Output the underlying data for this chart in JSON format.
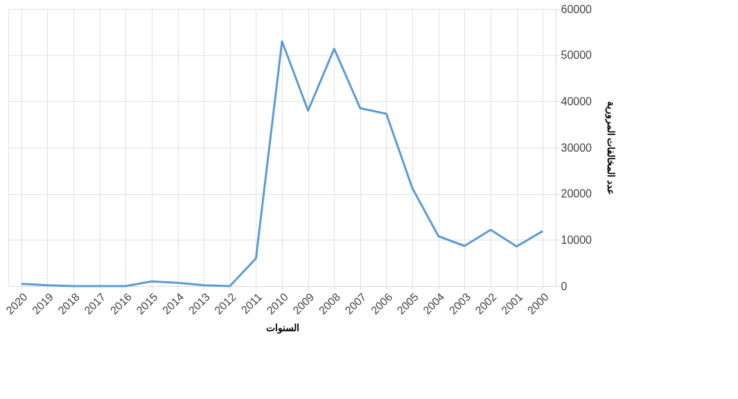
{
  "chart_data": {
    "type": "line",
    "xlabel": "السنوات",
    "ylabel": "عدد المخالفات المرورية",
    "categories": [
      "2020",
      "2019",
      "2018",
      "2017",
      "2016",
      "2015",
      "2014",
      "2013",
      "2012",
      "2011",
      "2010",
      "2009",
      "2008",
      "2007",
      "2006",
      "2005",
      "2004",
      "2003",
      "2002",
      "2001",
      "2000"
    ],
    "series": [
      {
        "color": "#5b9bd5",
        "values": [
          500,
          200,
          0,
          0,
          0,
          1000,
          700,
          200,
          0,
          6000,
          53000,
          38000,
          51400,
          38500,
          37300,
          21200,
          10800,
          8700,
          12200,
          8600,
          11900
        ]
      }
    ],
    "ylim": [
      0,
      60000
    ],
    "yticks": [
      0,
      10000,
      20000,
      30000,
      40000,
      50000,
      60000
    ],
    "grid": true,
    "marker": "none",
    "line_style": "solid"
  }
}
